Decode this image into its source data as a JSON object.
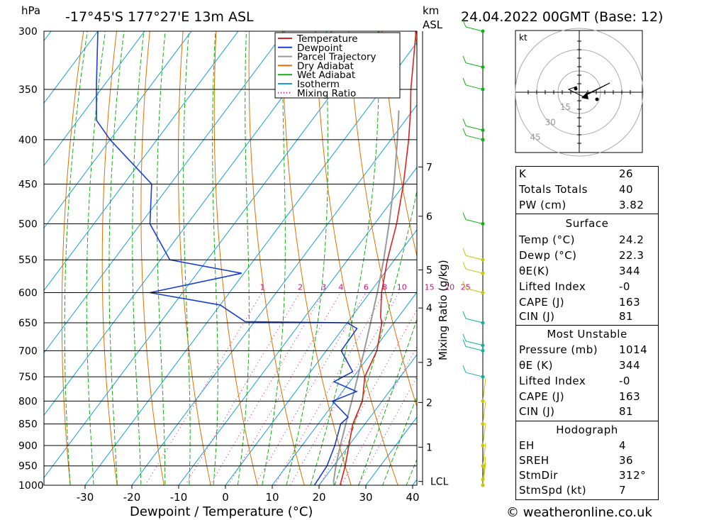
{
  "header": {
    "hpa_label": "hPa",
    "location": "-17°45'S  177°27'E  13m  ASL",
    "km_label": "km",
    "asl_label": "ASL",
    "datetime": "24.04.2022  00GMT  (Base: 12)"
  },
  "footer": {
    "credit": "© weatheronline.co.uk"
  },
  "chart_data": {
    "type": "skew-t",
    "xlabel": "Dewpoint / Temperature (°C)",
    "ylabel_right": "Mixing Ratio (g/kg)",
    "x_ticks": [
      "-30",
      "-20",
      "-10",
      "0",
      "10",
      "20",
      "30",
      "40"
    ],
    "x_tick_values": [
      -30,
      -20,
      -10,
      0,
      10,
      20,
      30,
      40
    ],
    "pressure_ticks": [
      300,
      350,
      400,
      450,
      500,
      550,
      600,
      650,
      700,
      750,
      800,
      850,
      900,
      950,
      1000
    ],
    "km_ticks": [
      {
        "label": "7",
        "p": 430
      },
      {
        "label": "6",
        "p": 490
      },
      {
        "label": "5",
        "p": 565
      },
      {
        "label": "4",
        "p": 625
      },
      {
        "label": "3",
        "p": 722
      },
      {
        "label": "2",
        "p": 803
      },
      {
        "label": "1",
        "p": 904
      },
      {
        "label": "LCL",
        "p": 990
      }
    ],
    "mixing_ratio_labels": [
      "1",
      "2",
      "3",
      "4",
      "6",
      "8",
      "10",
      "15",
      "20",
      "25"
    ],
    "mixing_ratio_values": [
      1,
      2,
      3,
      4,
      6,
      8,
      10,
      15,
      20,
      25
    ],
    "legend": [
      {
        "name": "Temperature",
        "color": "#e02020",
        "style": "solid"
      },
      {
        "name": "Dewpoint",
        "color": "#1a3fd6",
        "style": "solid"
      },
      {
        "name": "Parcel Trajectory",
        "color": "#9a9a9a",
        "style": "solid"
      },
      {
        "name": "Dry Adiabat",
        "color": "#e07000",
        "style": "solid"
      },
      {
        "name": "Wet Adiabat",
        "color": "#10b010",
        "style": "solid"
      },
      {
        "name": "Isotherm",
        "color": "#1aa0e0",
        "style": "solid"
      },
      {
        "name": "Mixing Ratio",
        "color": "#d01080",
        "style": "dotted"
      }
    ],
    "temperature": [
      {
        "p": 1014,
        "t": 24.2
      },
      {
        "p": 1000,
        "t": 24.5
      },
      {
        "p": 950,
        "t": 22.5
      },
      {
        "p": 900,
        "t": 20.0
      },
      {
        "p": 850,
        "t": 17.4
      },
      {
        "p": 800,
        "t": 15.8
      },
      {
        "p": 750,
        "t": 12.4
      },
      {
        "p": 700,
        "t": 10.8
      },
      {
        "p": 650,
        "t": 7.4
      },
      {
        "p": 640,
        "t": 6.2
      },
      {
        "p": 600,
        "t": 2.5
      },
      {
        "p": 550,
        "t": -1.5
      },
      {
        "p": 500,
        "t": -5.3
      },
      {
        "p": 450,
        "t": -10.2
      },
      {
        "p": 400,
        "t": -16.2
      },
      {
        "p": 370,
        "t": -20.5
      },
      {
        "p": 350,
        "t": -23.8
      },
      {
        "p": 300,
        "t": -32.0
      }
    ],
    "dewpoint": [
      {
        "p": 1014,
        "t": 22.3
      },
      {
        "p": 1000,
        "t": 19.0
      },
      {
        "p": 950,
        "t": 18.6
      },
      {
        "p": 900,
        "t": 17.0
      },
      {
        "p": 850,
        "t": 14.8
      },
      {
        "p": 835,
        "t": 15.3
      },
      {
        "p": 800,
        "t": 9.4
      },
      {
        "p": 780,
        "t": 13.0
      },
      {
        "p": 760,
        "t": 6.6
      },
      {
        "p": 740,
        "t": 9.0
      },
      {
        "p": 700,
        "t": 3.2
      },
      {
        "p": 660,
        "t": 3.0
      },
      {
        "p": 650,
        "t": 0.0
      },
      {
        "p": 648,
        "t": -22.0
      },
      {
        "p": 620,
        "t": -30.0
      },
      {
        "p": 600,
        "t": -47.0
      },
      {
        "p": 570,
        "t": -30.5
      },
      {
        "p": 550,
        "t": -48.0
      },
      {
        "p": 500,
        "t": -58.0
      },
      {
        "p": 450,
        "t": -64.0
      },
      {
        "p": 400,
        "t": -80.0
      },
      {
        "p": 380,
        "t": -86.0
      },
      {
        "p": 350,
        "t": -91.0
      },
      {
        "p": 300,
        "t": -100.0
      }
    ],
    "parcel": [
      {
        "p": 1014,
        "t": 24.2
      },
      {
        "p": 990,
        "t": 22.5
      },
      {
        "p": 950,
        "t": 20.5
      },
      {
        "p": 900,
        "t": 18.2
      },
      {
        "p": 850,
        "t": 15.9
      },
      {
        "p": 800,
        "t": 13.5
      },
      {
        "p": 750,
        "t": 10.9
      },
      {
        "p": 700,
        "t": 8.1
      },
      {
        "p": 650,
        "t": 5.0
      },
      {
        "p": 600,
        "t": 1.6
      },
      {
        "p": 550,
        "t": -2.3
      },
      {
        "p": 500,
        "t": -6.9
      },
      {
        "p": 450,
        "t": -12.2
      },
      {
        "p": 400,
        "t": -18.6
      },
      {
        "p": 370,
        "t": -23.0
      }
    ],
    "hodograph": {
      "unit_label": "kt",
      "rings": [
        "15",
        "30",
        "45"
      ],
      "ring_values": [
        15,
        30,
        45
      ]
    }
  },
  "indices": {
    "k_label": "K",
    "k_value": "26",
    "tt_label": "Totals Totals",
    "tt_value": "40",
    "pw_label": "PW (cm)",
    "pw_value": "3.82"
  },
  "surface": {
    "title": "Surface",
    "temp_label": "Temp (°C)",
    "temp_value": "24.2",
    "dewp_label": "Dewp (°C)",
    "dewp_value": "22.3",
    "theta_label": "θE(K)",
    "theta_value": "344",
    "li_label": "Lifted Index",
    "li_value": "-0",
    "cape_label": "CAPE (J)",
    "cape_value": "163",
    "cin_label": "CIN (J)",
    "cin_value": "81"
  },
  "most_unstable": {
    "title": "Most Unstable",
    "pressure_label": "Pressure (mb)",
    "pressure_value": "1014",
    "theta_label": "θE (K)",
    "theta_value": "344",
    "li_label": "Lifted Index",
    "li_value": "-0",
    "cape_label": "CAPE (J)",
    "cape_value": "163",
    "cin_label": "CIN (J)",
    "cin_value": "81"
  },
  "hodograph_box": {
    "title": "Hodograph",
    "eh_label": "EH",
    "eh_value": "4",
    "srh_label": "SREH",
    "srh_value": "36",
    "dir_label": "StmDir",
    "dir_value": "312°",
    "spd_label": "StmSpd (kt)",
    "spd_value": "7"
  }
}
